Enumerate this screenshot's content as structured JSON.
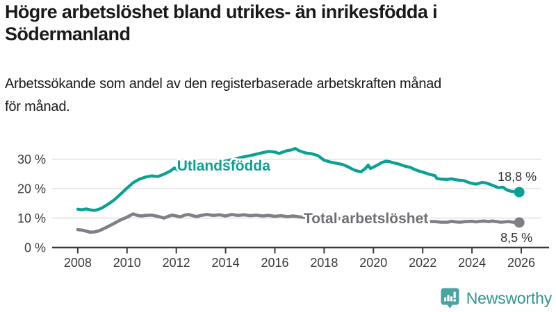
{
  "header": {
    "title_lines": [
      "Högre arbetslöshet bland utrikes- än inrikesfödda i",
      "Södermanland"
    ],
    "subtitle_lines": [
      "Arbetssökande som andel av den registerbaserade arbetskraften månad",
      "för månad."
    ]
  },
  "footer": {
    "brand": "Newsworthy"
  },
  "colors": {
    "foreign_born": "#0ba094",
    "total": "#7f7f85",
    "total_label": "#6f6f74",
    "axis_text": "#3b3b3b",
    "axis_line": "#3a3a3a",
    "gridline": "#d9d9d9",
    "value_label": "#333333",
    "logo_icon": "#4aa5a2",
    "logo_text": "#2f9490"
  },
  "chart_data": {
    "type": "line",
    "title": "Högre arbetslöshet bland utrikes- än inrikesfödda i Södermanland",
    "subtitle": "Arbetssökande som andel av den registerbaserade arbetskraften månad för månad.",
    "xlabel": "",
    "ylabel": "",
    "unit": "%",
    "grid": "horizontal",
    "legend_position": "inline-labels",
    "xlim": [
      2006.96,
      2026.79
    ],
    "ylim": [
      0,
      35
    ],
    "yticks": {
      "values": [
        0,
        10,
        20,
        30
      ],
      "labels": [
        "0 %",
        "10 %",
        "20 %",
        "30 %"
      ]
    },
    "xticks": {
      "values": [
        2008,
        2010,
        2012,
        2014,
        2016,
        2018,
        2020,
        2022,
        2024,
        2026
      ],
      "labels": [
        "2008",
        "2010",
        "2012",
        "2014",
        "2016",
        "2018",
        "2020",
        "2022",
        "2024",
        "2026"
      ]
    },
    "series": [
      {
        "name": "Utlandsfödda",
        "color": "#0ba094",
        "line_width": 4.3,
        "end_dot": true,
        "value_label": "18,8 %",
        "value_label_side": "above",
        "name_label_pos": [
          2012.03,
          26.1
        ],
        "points": [
          [
            2008.0,
            13.0
          ],
          [
            2008.17,
            12.8
          ],
          [
            2008.33,
            13.1
          ],
          [
            2008.5,
            12.8
          ],
          [
            2008.67,
            12.6
          ],
          [
            2008.83,
            12.9
          ],
          [
            2009.0,
            13.5
          ],
          [
            2009.25,
            14.8
          ],
          [
            2009.5,
            16.3
          ],
          [
            2009.75,
            18.2
          ],
          [
            2010.0,
            20.2
          ],
          [
            2010.25,
            22.0
          ],
          [
            2010.5,
            23.2
          ],
          [
            2010.75,
            23.9
          ],
          [
            2011.0,
            24.3
          ],
          [
            2011.25,
            24.1
          ],
          [
            2011.5,
            24.9
          ],
          [
            2011.75,
            25.9
          ],
          [
            2011.92,
            27.0
          ],
          [
            2012.08,
            26.2
          ],
          [
            2012.25,
            26.4
          ],
          [
            2012.5,
            26.7
          ],
          [
            2012.75,
            27.0
          ],
          [
            2013.0,
            27.4
          ],
          [
            2013.25,
            27.9
          ],
          [
            2013.5,
            28.3
          ],
          [
            2013.75,
            28.8
          ],
          [
            2014.0,
            29.3
          ],
          [
            2014.25,
            29.8
          ],
          [
            2014.5,
            30.3
          ],
          [
            2014.75,
            30.8
          ],
          [
            2015.0,
            31.2
          ],
          [
            2015.25,
            31.7
          ],
          [
            2015.5,
            32.2
          ],
          [
            2015.75,
            32.6
          ],
          [
            2016.0,
            32.4
          ],
          [
            2016.17,
            31.9
          ],
          [
            2016.33,
            32.4
          ],
          [
            2016.5,
            32.9
          ],
          [
            2016.67,
            33.1
          ],
          [
            2016.83,
            33.6
          ],
          [
            2017.0,
            32.8
          ],
          [
            2017.25,
            32.1
          ],
          [
            2017.5,
            31.8
          ],
          [
            2017.75,
            31.2
          ],
          [
            2018.0,
            29.6
          ],
          [
            2018.25,
            29.0
          ],
          [
            2018.5,
            28.6
          ],
          [
            2018.75,
            28.2
          ],
          [
            2019.0,
            27.3
          ],
          [
            2019.17,
            26.5
          ],
          [
            2019.33,
            26.0
          ],
          [
            2019.5,
            25.7
          ],
          [
            2019.67,
            26.8
          ],
          [
            2019.79,
            28.0
          ],
          [
            2019.88,
            26.8
          ],
          [
            2020.0,
            27.3
          ],
          [
            2020.17,
            28.0
          ],
          [
            2020.33,
            28.8
          ],
          [
            2020.5,
            29.3
          ],
          [
            2020.67,
            29.1
          ],
          [
            2020.83,
            28.7
          ],
          [
            2021.0,
            28.4
          ],
          [
            2021.17,
            27.9
          ],
          [
            2021.33,
            27.5
          ],
          [
            2021.5,
            27.2
          ],
          [
            2021.67,
            26.5
          ],
          [
            2021.83,
            26.0
          ],
          [
            2022.0,
            25.6
          ],
          [
            2022.25,
            24.9
          ],
          [
            2022.5,
            24.4
          ],
          [
            2022.58,
            23.4
          ],
          [
            2022.75,
            23.2
          ],
          [
            2023.0,
            23.1
          ],
          [
            2023.17,
            23.3
          ],
          [
            2023.42,
            22.9
          ],
          [
            2023.67,
            22.7
          ],
          [
            2023.92,
            21.9
          ],
          [
            2024.17,
            21.5
          ],
          [
            2024.42,
            22.1
          ],
          [
            2024.58,
            21.9
          ],
          [
            2024.83,
            21.1
          ],
          [
            2025.08,
            20.3
          ],
          [
            2025.25,
            20.5
          ],
          [
            2025.42,
            19.5
          ],
          [
            2025.58,
            19.1
          ],
          [
            2025.92,
            18.8
          ]
        ]
      },
      {
        "name": "Total arbetslöshet",
        "color": "#7f7f85",
        "label_color": "#6f6f74",
        "line_width": 4.6,
        "end_dot": true,
        "value_label": "8,5 %",
        "value_label_side": "below",
        "name_label_pos": [
          2017.17,
          8.24
        ],
        "points": [
          [
            2008.0,
            6.1
          ],
          [
            2008.17,
            5.9
          ],
          [
            2008.33,
            5.6
          ],
          [
            2008.5,
            5.2
          ],
          [
            2008.67,
            5.3
          ],
          [
            2008.83,
            5.6
          ],
          [
            2009.0,
            6.2
          ],
          [
            2009.25,
            7.2
          ],
          [
            2009.5,
            8.3
          ],
          [
            2009.75,
            9.4
          ],
          [
            2010.0,
            10.3
          ],
          [
            2010.25,
            11.4
          ],
          [
            2010.42,
            10.9
          ],
          [
            2010.58,
            10.7
          ],
          [
            2010.75,
            10.9
          ],
          [
            2011.0,
            11.0
          ],
          [
            2011.17,
            10.7
          ],
          [
            2011.33,
            10.4
          ],
          [
            2011.5,
            10.0
          ],
          [
            2011.67,
            10.6
          ],
          [
            2011.83,
            11.0
          ],
          [
            2012.0,
            10.7
          ],
          [
            2012.17,
            10.4
          ],
          [
            2012.33,
            11.0
          ],
          [
            2012.5,
            11.2
          ],
          [
            2012.67,
            10.8
          ],
          [
            2012.83,
            10.5
          ],
          [
            2013.0,
            10.9
          ],
          [
            2013.25,
            11.2
          ],
          [
            2013.5,
            10.9
          ],
          [
            2013.75,
            11.1
          ],
          [
            2014.0,
            10.7
          ],
          [
            2014.25,
            11.2
          ],
          [
            2014.5,
            10.9
          ],
          [
            2014.75,
            11.1
          ],
          [
            2015.0,
            10.8
          ],
          [
            2015.25,
            11.0
          ],
          [
            2015.5,
            10.7
          ],
          [
            2015.75,
            10.9
          ],
          [
            2016.0,
            10.6
          ],
          [
            2016.25,
            10.8
          ],
          [
            2016.5,
            10.5
          ],
          [
            2016.75,
            10.7
          ],
          [
            2017.0,
            10.4
          ],
          [
            2017.25,
            10.2
          ],
          [
            2017.5,
            10.4
          ],
          [
            2017.75,
            10.1
          ],
          [
            2018.0,
            10.2
          ],
          [
            2018.25,
            9.9
          ],
          [
            2018.5,
            10.0
          ],
          [
            2018.75,
            9.7
          ],
          [
            2019.0,
            9.5
          ],
          [
            2019.25,
            9.6
          ],
          [
            2019.5,
            9.8
          ],
          [
            2019.75,
            10.0
          ],
          [
            2020.0,
            10.2
          ],
          [
            2020.25,
            10.8
          ],
          [
            2020.5,
            11.0
          ],
          [
            2020.75,
            10.7
          ],
          [
            2021.0,
            10.4
          ],
          [
            2021.25,
            10.0
          ],
          [
            2021.5,
            9.6
          ],
          [
            2021.75,
            9.3
          ],
          [
            2022.0,
            9.0
          ],
          [
            2022.25,
            8.8
          ],
          [
            2022.5,
            8.8
          ],
          [
            2022.75,
            8.6
          ],
          [
            2023.0,
            8.6
          ],
          [
            2023.17,
            8.9
          ],
          [
            2023.33,
            8.7
          ],
          [
            2023.5,
            8.6
          ],
          [
            2023.75,
            8.8
          ],
          [
            2024.0,
            8.9
          ],
          [
            2024.17,
            8.7
          ],
          [
            2024.33,
            8.9
          ],
          [
            2024.5,
            9.0
          ],
          [
            2024.67,
            8.8
          ],
          [
            2024.83,
            9.0
          ],
          [
            2025.0,
            8.8
          ],
          [
            2025.17,
            8.6
          ],
          [
            2025.33,
            8.7
          ],
          [
            2025.5,
            8.8
          ],
          [
            2025.67,
            8.6
          ],
          [
            2025.92,
            8.5
          ]
        ]
      }
    ]
  }
}
